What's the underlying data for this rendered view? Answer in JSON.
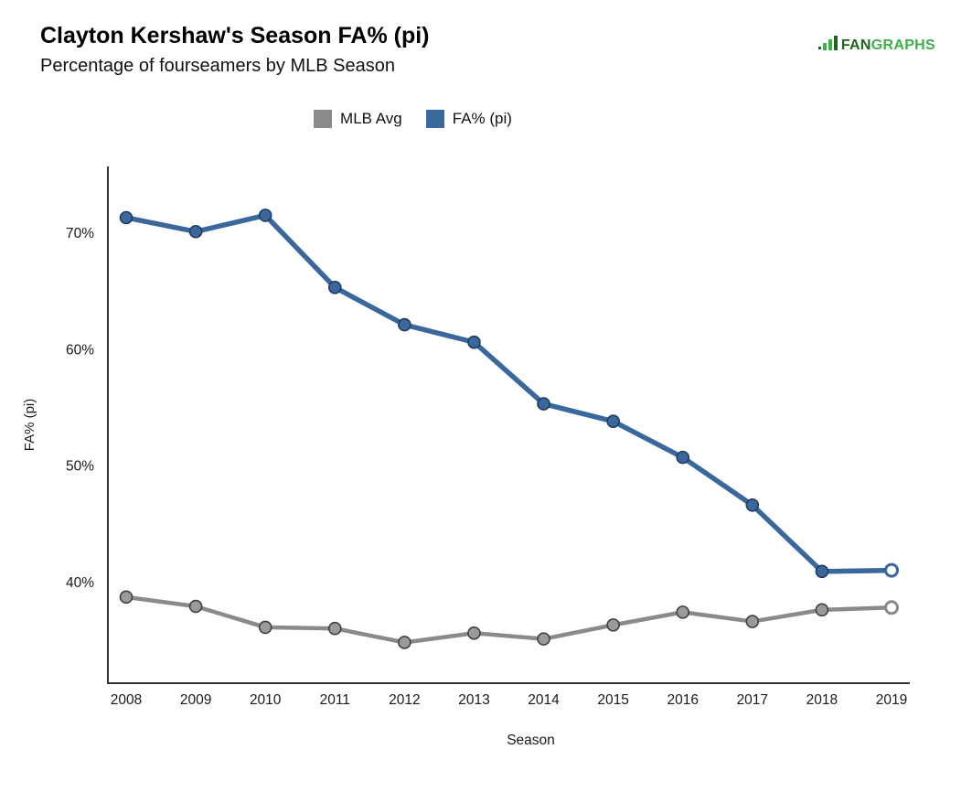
{
  "logo": {
    "text_primary": "FAN",
    "text_secondary": "GRAPHS",
    "color_primary": "#1e651e",
    "color_secondary": "#3fae49"
  },
  "chart_data": {
    "type": "line",
    "title": "Clayton Kershaw's Season FA% (pi)",
    "subtitle": "Percentage of fourseamers by MLB Season",
    "xlabel": "Season",
    "ylabel": "FA% (pi)",
    "categories": [
      "2008",
      "2009",
      "2010",
      "2011",
      "2012",
      "2013",
      "2014",
      "2015",
      "2016",
      "2017",
      "2018",
      "2019"
    ],
    "series": [
      {
        "name": "MLB Avg",
        "color": "#8a8a8a",
        "marker_fill": "#9a9a9a",
        "marker_stroke": "#3f3f3f",
        "line_width": 4.5,
        "last_point_hollow": true,
        "values": [
          38.7,
          37.9,
          36.1,
          36.0,
          34.8,
          35.6,
          35.1,
          36.3,
          37.4,
          36.6,
          37.6,
          37.8
        ]
      },
      {
        "name": "FA% (pi)",
        "color": "#3a679c",
        "marker_fill": "#3a679c",
        "marker_stroke": "#1f3c5c",
        "line_width": 5.5,
        "last_point_hollow": true,
        "values": [
          71.3,
          70.1,
          71.5,
          65.3,
          62.1,
          60.6,
          55.3,
          53.8,
          50.7,
          46.6,
          40.9,
          41.0
        ]
      }
    ],
    "ylim": [
      31.3,
      75.7
    ],
    "yticks": [
      {
        "value": 40,
        "label": "40%"
      },
      {
        "value": 50,
        "label": "50%"
      },
      {
        "value": 60,
        "label": "60%"
      },
      {
        "value": 70,
        "label": "70%"
      }
    ],
    "grid": false,
    "legend_position": "top-center",
    "axis_color": "#333333",
    "tick_label_color": "#1a1a1a"
  }
}
